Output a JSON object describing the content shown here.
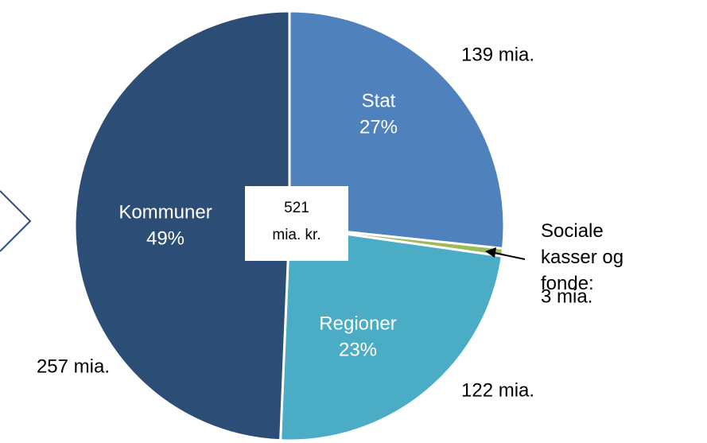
{
  "chart_data": {
    "type": "pie",
    "categories": [
      "Stat",
      "Sociale kasser og fonde:",
      "Regioner",
      "Kommuner"
    ],
    "values": [
      139,
      3,
      122,
      257
    ],
    "value_labels": [
      "139 mia.",
      "3 mia.",
      "122 mia.",
      "257 mia."
    ],
    "percents": [
      {
        "value": 27,
        "label": "27%"
      },
      null,
      {
        "value": 23,
        "label": "23%"
      },
      {
        "value": 49,
        "label": "49%"
      }
    ],
    "colors": [
      "#4f81bd",
      "#9bbb59",
      "#4bacc6",
      "#2c4d75"
    ],
    "total": 521,
    "total_unit": "mia. kr."
  }
}
